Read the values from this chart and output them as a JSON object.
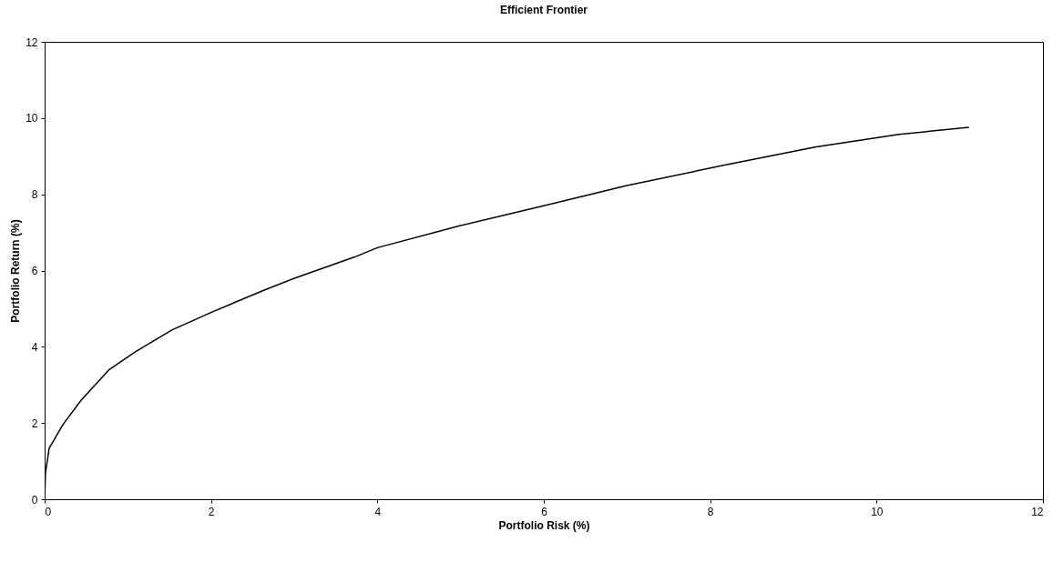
{
  "chart_data": {
    "type": "line",
    "title": "Efficient Frontier",
    "xlabel": "Portfolio Risk (%)",
    "ylabel": "Portfolio Return (%)",
    "x": [
      0,
      0.01,
      0.055,
      0.22,
      0.44,
      0.77,
      1.09,
      1.53,
      2.0,
      2.62,
      2.98,
      3.72,
      4.0,
      5.0,
      6.0,
      7.0,
      8.16,
      9.26,
      10.27,
      11.11
    ],
    "series": [
      {
        "color": "#000000",
        "values": [
          0,
          0.69,
          1.34,
          1.96,
          2.6,
          3.39,
          3.87,
          4.44,
          4.9,
          5.47,
          5.78,
          6.35,
          6.6,
          7.18,
          7.7,
          8.23,
          8.76,
          9.24,
          9.57,
          9.76
        ]
      }
    ],
    "xlim": [
      0,
      12
    ],
    "ylim": [
      0,
      12
    ],
    "xticks": [
      0,
      2,
      4,
      6,
      8,
      10,
      12
    ],
    "yticks": [
      0,
      2,
      4,
      6,
      8,
      10,
      12
    ],
    "grid": false,
    "legend": false,
    "marker": "none",
    "line_style": "solid"
  }
}
